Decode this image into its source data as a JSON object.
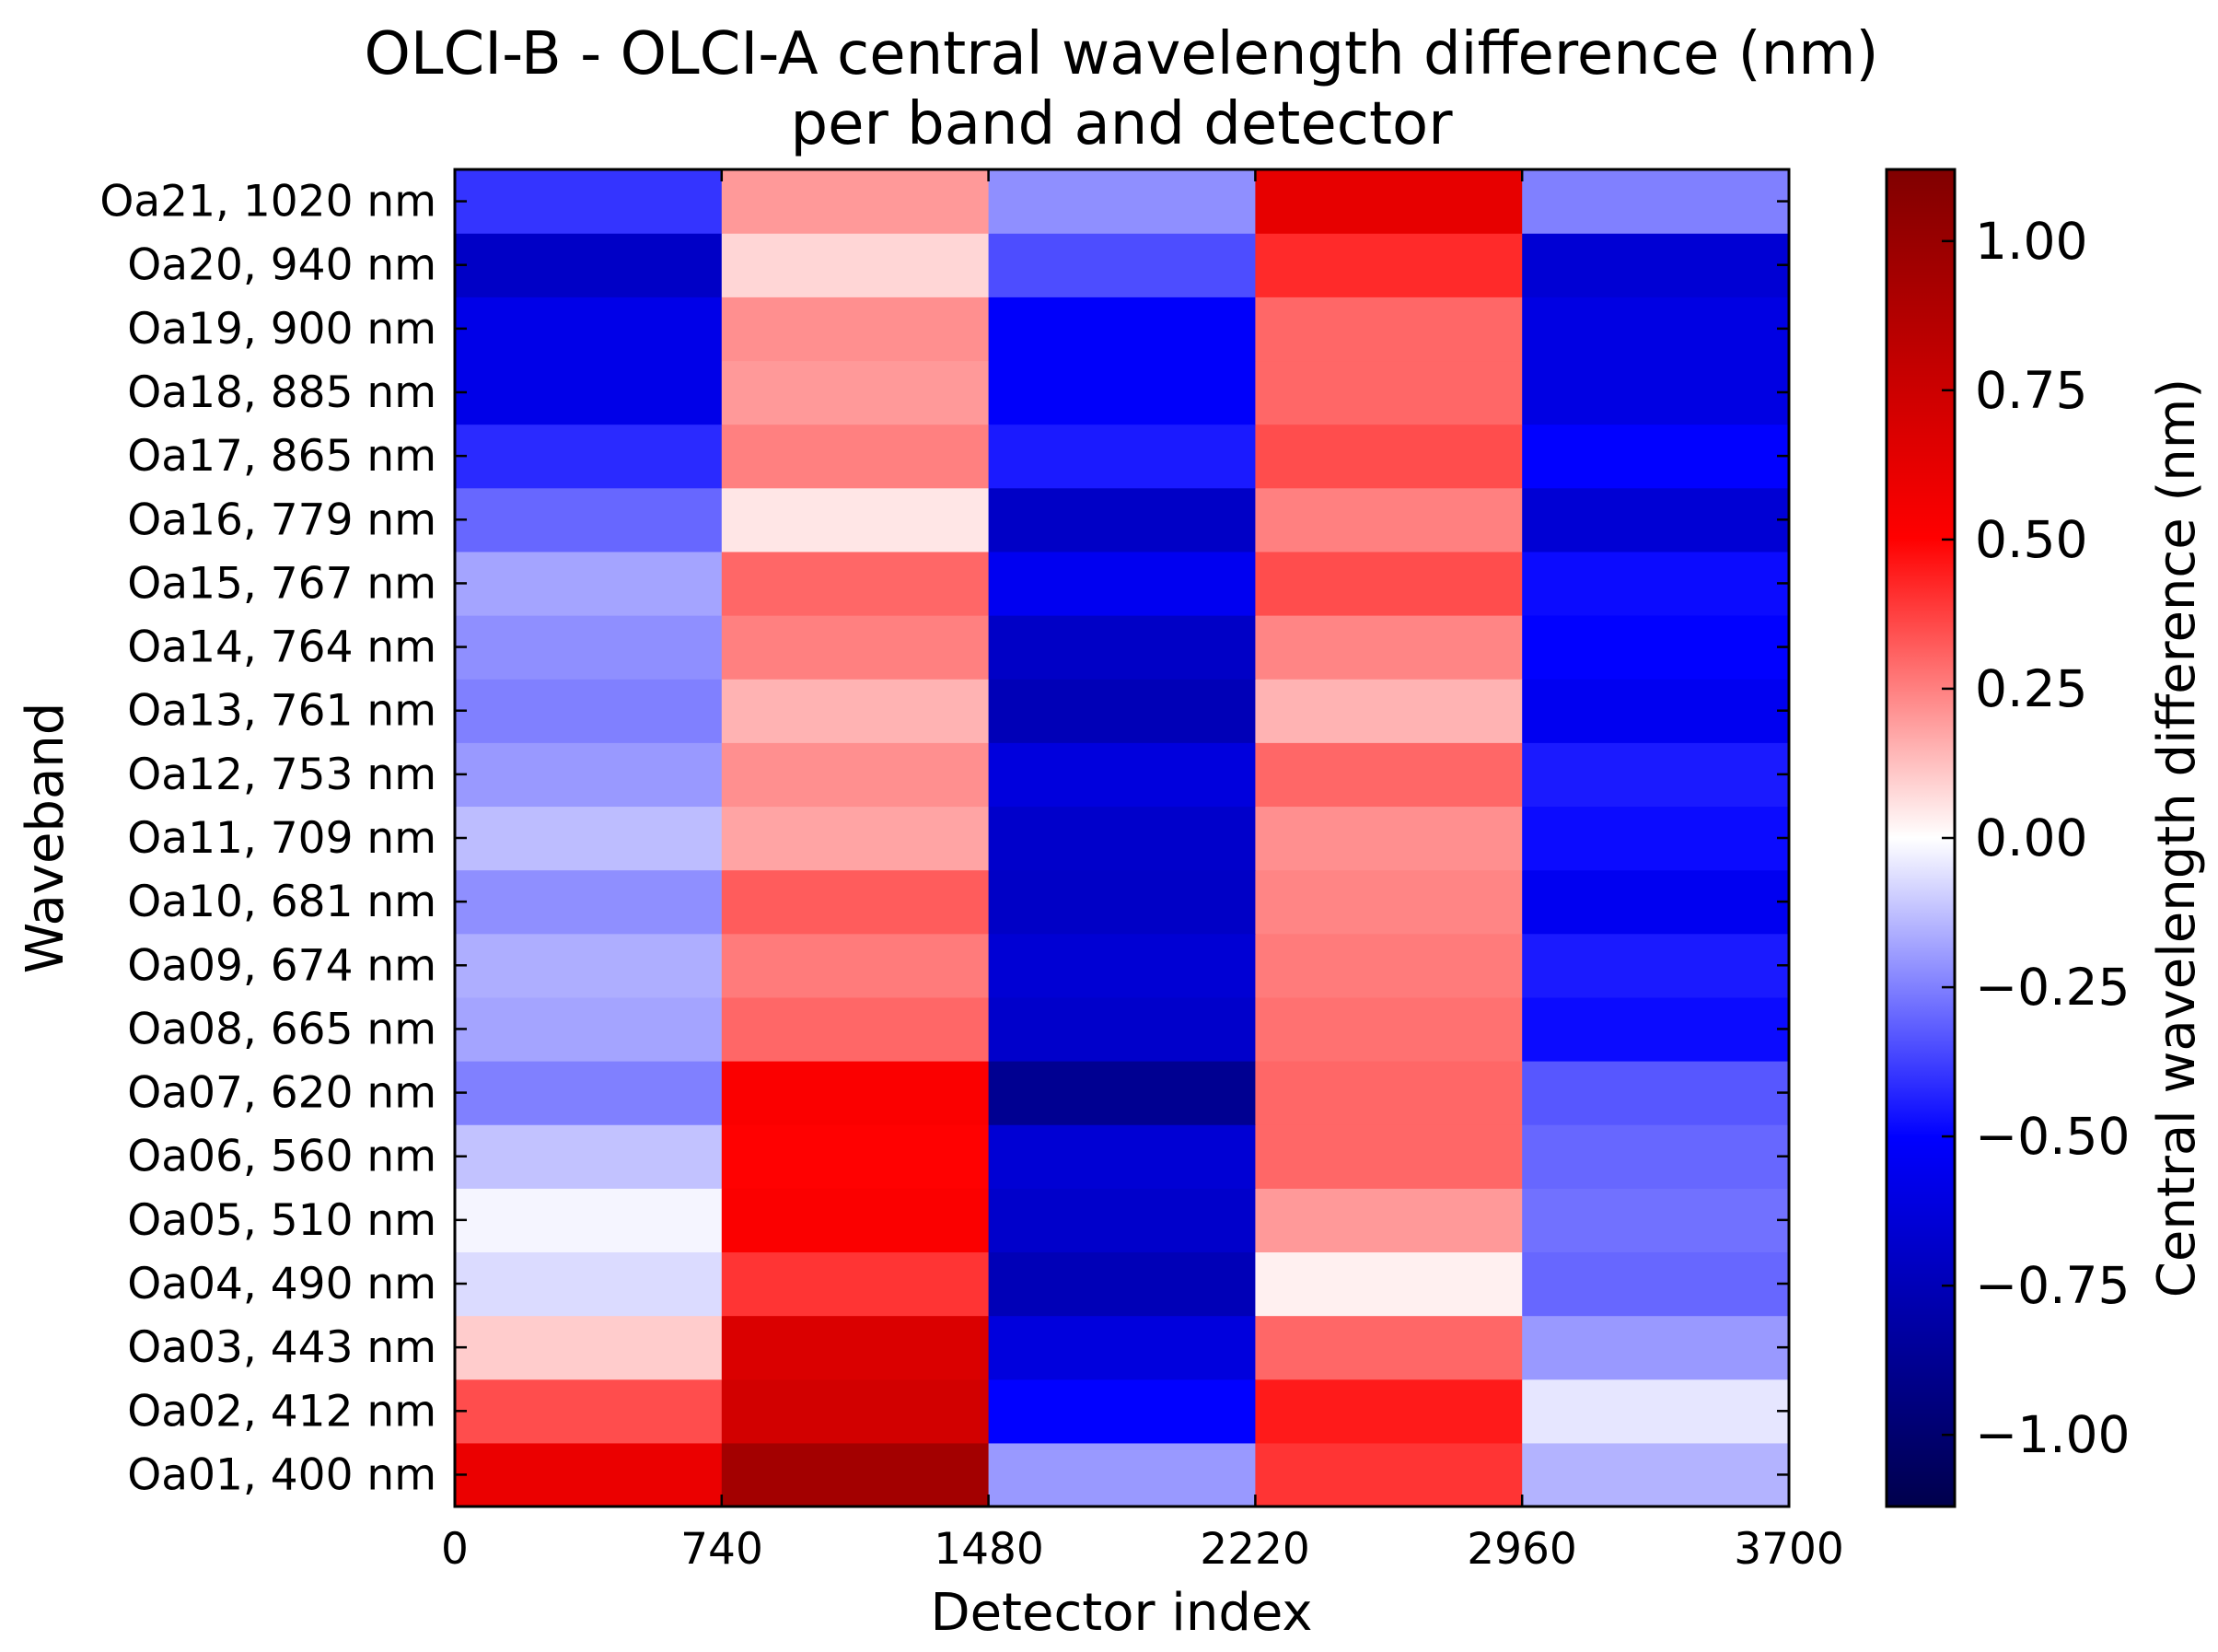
{
  "chart_data": {
    "type": "heatmap",
    "title_lines": [
      "OLCI-B - OLCI-A central wavelength difference (nm)",
      "per band and detector"
    ],
    "xlabel": "Detector index",
    "ylabel": "Waveband",
    "x_ticks": [
      "0",
      "740",
      "1480",
      "2220",
      "2960",
      "3700"
    ],
    "x_range": [
      0,
      3700
    ],
    "camera_boundaries": [
      0,
      740,
      1480,
      2220,
      2960,
      3700
    ],
    "bands": [
      {
        "label": "Oa01, 400 nm",
        "values": [
          0.6,
          0.95,
          -0.2,
          0.4,
          -0.15
        ]
      },
      {
        "label": "Oa02, 412 nm",
        "values": [
          0.35,
          0.72,
          -0.5,
          0.45,
          -0.05
        ]
      },
      {
        "label": "Oa03, 443 nm",
        "values": [
          0.1,
          0.68,
          -0.62,
          0.3,
          -0.2
        ]
      },
      {
        "label": "Oa04, 490 nm",
        "values": [
          -0.07,
          0.4,
          -0.75,
          0.03,
          -0.3
        ]
      },
      {
        "label": "Oa05, 510 nm",
        "values": [
          -0.02,
          0.52,
          -0.68,
          0.2,
          -0.28
        ]
      },
      {
        "label": "Oa06, 560 nm",
        "values": [
          -0.12,
          0.5,
          -0.65,
          0.3,
          -0.3
        ]
      },
      {
        "label": "Oa07, 620 nm",
        "values": [
          -0.25,
          0.52,
          -0.88,
          0.3,
          -0.33
        ]
      },
      {
        "label": "Oa08, 665 nm",
        "values": [
          -0.18,
          0.3,
          -0.68,
          0.28,
          -0.48
        ]
      },
      {
        "label": "Oa09, 674 nm",
        "values": [
          -0.16,
          0.26,
          -0.65,
          0.26,
          -0.45
        ]
      },
      {
        "label": "Oa10, 681 nm",
        "values": [
          -0.22,
          0.32,
          -0.7,
          0.24,
          -0.55
        ]
      },
      {
        "label": "Oa11, 709 nm",
        "values": [
          -0.13,
          0.18,
          -0.68,
          0.22,
          -0.48
        ]
      },
      {
        "label": "Oa12, 753 nm",
        "values": [
          -0.2,
          0.22,
          -0.62,
          0.3,
          -0.45
        ]
      },
      {
        "label": "Oa13, 761 nm",
        "values": [
          -0.25,
          0.15,
          -0.75,
          0.15,
          -0.55
        ]
      },
      {
        "label": "Oa14, 764 nm",
        "values": [
          -0.22,
          0.25,
          -0.7,
          0.24,
          -0.5
        ]
      },
      {
        "label": "Oa15, 767 nm",
        "values": [
          -0.18,
          0.3,
          -0.55,
          0.35,
          -0.48
        ]
      },
      {
        "label": "Oa16, 779 nm",
        "values": [
          -0.3,
          0.05,
          -0.7,
          0.25,
          -0.65
        ]
      },
      {
        "label": "Oa17, 865 nm",
        "values": [
          -0.42,
          0.25,
          -0.45,
          0.35,
          -0.5
        ]
      },
      {
        "label": "Oa18, 885 nm",
        "values": [
          -0.58,
          0.2,
          -0.52,
          0.3,
          -0.6
        ]
      },
      {
        "label": "Oa19, 900 nm",
        "values": [
          -0.58,
          0.22,
          -0.52,
          0.3,
          -0.6
        ]
      },
      {
        "label": "Oa20, 940 nm",
        "values": [
          -0.7,
          0.08,
          -0.35,
          0.42,
          -0.65
        ]
      },
      {
        "label": "Oa21, 1020 nm",
        "values": [
          -0.4,
          0.2,
          -0.22,
          0.62,
          -0.25
        ]
      }
    ],
    "colorbar": {
      "label": "Central wavelength difference (nm)",
      "range": [
        -1.12,
        1.12
      ],
      "ticks": [
        "1.00",
        "0.75",
        "0.50",
        "0.25",
        "0.00",
        "−0.25",
        "−0.50",
        "−0.75",
        "−1.00"
      ],
      "tick_values": [
        1.0,
        0.75,
        0.5,
        0.25,
        0.0,
        -0.25,
        -0.5,
        -0.75,
        -1.0
      ],
      "colormap": "seismic",
      "colors": [
        "#00004c",
        "#0000ff",
        "#ffffff",
        "#ff0000",
        "#800000"
      ]
    }
  }
}
